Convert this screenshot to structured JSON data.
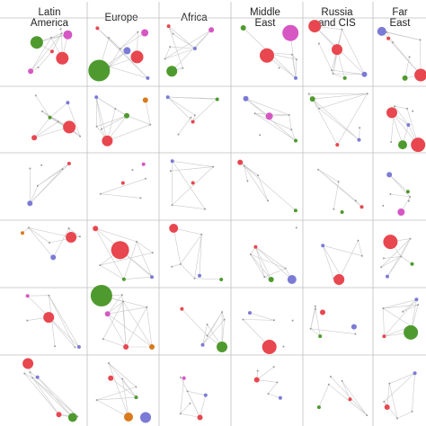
{
  "columns": [
    {
      "label": "Latin\nAmerica"
    },
    {
      "label": "Europe"
    },
    {
      "label": "Africa"
    },
    {
      "label": "Middle\nEast"
    },
    {
      "label": "Russia\nand CIS"
    },
    {
      "label": "Far\nEast"
    }
  ],
  "colors": {
    "red": "#e8474f",
    "green": "#4f9a2e",
    "blue": "#7b7bd6",
    "magenta": "#d657c4",
    "orange": "#d97a1c",
    "edge": "#c9c9c9",
    "grid": "#bfbfbf"
  },
  "panels": [
    [
      [
        [
          "green",
          7
        ],
        [
          "red",
          7
        ],
        [
          "magenta",
          3
        ],
        [
          "magenta",
          5
        ],
        [
          "red",
          2
        ]
      ],
      [
        [
          "red",
          7
        ],
        [
          "green",
          12
        ],
        [
          "magenta",
          4
        ],
        [
          "blue",
          4
        ],
        [
          "red",
          2
        ],
        [
          "blue",
          2
        ]
      ],
      [
        [
          "green",
          6
        ],
        [
          "magenta",
          3
        ],
        [
          "blue",
          2
        ],
        [
          "red",
          2
        ]
      ],
      [
        [
          "magenta",
          9
        ],
        [
          "red",
          8
        ],
        [
          "green",
          3
        ],
        [
          "blue",
          2
        ]
      ],
      [
        [
          "red",
          6
        ],
        [
          "red",
          7
        ],
        [
          "blue",
          3
        ],
        [
          "green",
          2
        ]
      ],
      [
        [
          "blue",
          5
        ],
        [
          "red",
          7
        ],
        [
          "green",
          3
        ],
        [
          "red",
          2
        ]
      ]
    ],
    [
      [
        [
          "red",
          7
        ],
        [
          "red",
          3
        ],
        [
          "blue",
          2
        ],
        [
          "green",
          2
        ]
      ],
      [
        [
          "red",
          6
        ],
        [
          "orange",
          3
        ],
        [
          "green",
          3
        ],
        [
          "blue",
          2
        ]
      ],
      [
        [
          "green",
          2
        ],
        [
          "red",
          2
        ],
        [
          "blue",
          2
        ]
      ],
      [
        [
          "magenta",
          4
        ],
        [
          "blue",
          3
        ],
        [
          "green",
          2
        ]
      ],
      [
        [
          "green",
          3
        ],
        [
          "blue",
          2
        ],
        [
          "red",
          2
        ]
      ],
      [
        [
          "red",
          8
        ],
        [
          "green",
          5
        ],
        [
          "red",
          6
        ],
        [
          "blue",
          2
        ]
      ]
    ],
    [
      [
        [
          "blue",
          3
        ],
        [
          "red",
          2
        ]
      ],
      [
        [
          "magenta",
          2
        ],
        [
          "red",
          2
        ]
      ],
      [
        [
          "red",
          2
        ],
        [
          "blue",
          2
        ]
      ],
      [
        [
          "red",
          3
        ],
        [
          "green",
          2
        ]
      ],
      [
        [
          "red",
          2
        ],
        [
          "green",
          2
        ]
      ],
      [
        [
          "magenta",
          4
        ],
        [
          "blue",
          3
        ],
        [
          "green",
          2
        ]
      ]
    ],
    [
      [
        [
          "red",
          6
        ],
        [
          "blue",
          3
        ],
        [
          "orange",
          2
        ]
      ],
      [
        [
          "red",
          10
        ],
        [
          "red",
          3
        ],
        [
          "blue",
          2
        ],
        [
          "green",
          2
        ]
      ],
      [
        [
          "red",
          5
        ],
        [
          "green",
          2
        ],
        [
          "blue",
          2
        ]
      ],
      [
        [
          "blue",
          5
        ],
        [
          "green",
          3
        ],
        [
          "red",
          2
        ]
      ],
      [
        [
          "red",
          6
        ],
        [
          "blue",
          2
        ]
      ],
      [
        [
          "red",
          8
        ],
        [
          "green",
          2
        ],
        [
          "blue",
          2
        ]
      ]
    ],
    [
      [
        [
          "red",
          6
        ],
        [
          "magenta",
          2
        ],
        [
          "blue",
          2
        ]
      ],
      [
        [
          "green",
          12
        ],
        [
          "orange",
          3
        ],
        [
          "red",
          3
        ],
        [
          "magenta",
          3
        ]
      ],
      [
        [
          "green",
          6
        ],
        [
          "blue",
          2
        ],
        [
          "red",
          2
        ]
      ],
      [
        [
          "red",
          8
        ],
        [
          "blue",
          2
        ]
      ],
      [
        [
          "red",
          3
        ],
        [
          "blue",
          3
        ],
        [
          "green",
          2
        ]
      ],
      [
        [
          "green",
          8
        ],
        [
          "red",
          2
        ],
        [
          "blue",
          2
        ]
      ]
    ],
    [
      [
        [
          "red",
          6
        ],
        [
          "green",
          5
        ],
        [
          "red",
          3
        ],
        [
          "blue",
          2
        ]
      ],
      [
        [
          "blue",
          6
        ],
        [
          "orange",
          5
        ],
        [
          "red",
          3
        ],
        [
          "green",
          2
        ]
      ],
      [
        [
          "red",
          3
        ],
        [
          "magenta",
          2
        ],
        [
          "blue",
          2
        ]
      ],
      [
        [
          "red",
          3
        ],
        [
          "blue",
          2
        ]
      ],
      [
        [
          "red",
          2
        ],
        [
          "green",
          2
        ]
      ],
      [
        [
          "red",
          3
        ],
        [
          "blue",
          2
        ]
      ]
    ]
  ]
}
